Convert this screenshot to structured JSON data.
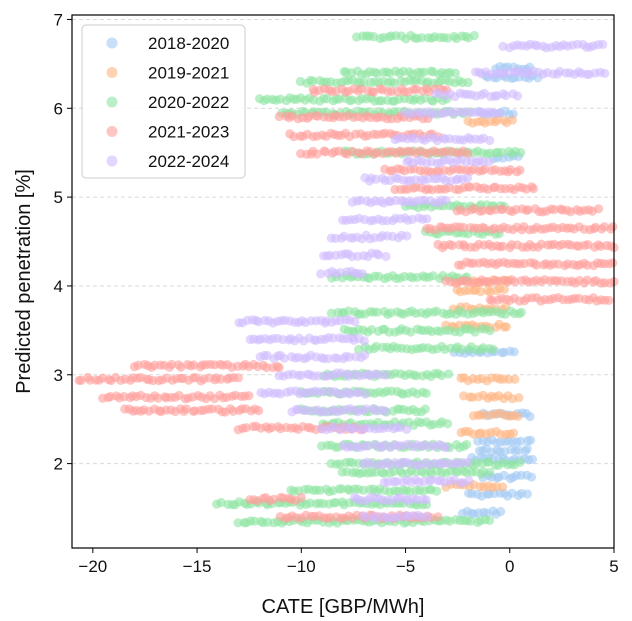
{
  "chart_data": {
    "type": "scatter",
    "xlabel": "CATE [GBP/MWh]",
    "ylabel": "Predicted penetration [%]",
    "xlim": [
      -21,
      5
    ],
    "ylim": [
      1.05,
      7.05
    ],
    "xticks": [
      -20,
      -15,
      -10,
      -5,
      0,
      5
    ],
    "yticks": [
      2,
      3,
      4,
      5,
      6,
      7
    ],
    "xtick_labels": [
      "−20",
      "−15",
      "−10",
      "−5",
      "0",
      "5"
    ],
    "ytick_labels": [
      "2",
      "3",
      "4",
      "5",
      "6",
      "7"
    ],
    "grid": "horizontal dashed",
    "legend_position": "top-left",
    "series": [
      {
        "name": "2018-2020",
        "color": "#a1c9f4",
        "bands": [
          {
            "y": 6.45,
            "x_min": -0.7,
            "x_max": 1.0
          },
          {
            "y": 6.35,
            "x_min": -1.2,
            "x_max": 1.3
          },
          {
            "y": 5.95,
            "x_min": -1.5,
            "x_max": 0.2
          },
          {
            "y": 5.45,
            "x_min": -0.8,
            "x_max": 0.4
          },
          {
            "y": 3.25,
            "x_min": -2.6,
            "x_max": 0.2
          },
          {
            "y": 2.55,
            "x_min": -1.2,
            "x_max": 1.0
          },
          {
            "y": 2.25,
            "x_min": -1.5,
            "x_max": 1.0
          },
          {
            "y": 2.15,
            "x_min": -1.5,
            "x_max": 0.9
          },
          {
            "y": 2.05,
            "x_min": -1.8,
            "x_max": 1.1
          },
          {
            "y": 1.85,
            "x_min": -1.3,
            "x_max": 1.0
          },
          {
            "y": 1.65,
            "x_min": -2.0,
            "x_max": 0.8
          },
          {
            "y": 1.45,
            "x_min": -2.3,
            "x_max": -0.4
          }
        ]
      },
      {
        "name": "2019-2021",
        "color": "#ffb482",
        "bands": [
          {
            "y": 5.85,
            "x_min": -2.0,
            "x_max": 0.1
          },
          {
            "y": 4.05,
            "x_min": -2.6,
            "x_max": -0.1
          },
          {
            "y": 3.95,
            "x_min": -2.6,
            "x_max": -0.3
          },
          {
            "y": 3.75,
            "x_min": -2.7,
            "x_max": -0.2
          },
          {
            "y": 3.55,
            "x_min": -3.0,
            "x_max": -0.1
          },
          {
            "y": 2.95,
            "x_min": -2.4,
            "x_max": 0.2
          },
          {
            "y": 2.75,
            "x_min": -2.2,
            "x_max": 0.4
          },
          {
            "y": 2.55,
            "x_min": -1.8,
            "x_max": 0.4
          },
          {
            "y": 2.35,
            "x_min": -2.4,
            "x_max": 0.2
          },
          {
            "y": 1.75,
            "x_min": -3.0,
            "x_max": -0.4
          }
        ]
      },
      {
        "name": "2020-2022",
        "color": "#8de5a1",
        "bands": [
          {
            "y": 6.8,
            "x_min": -7.3,
            "x_max": -1.7
          },
          {
            "y": 6.4,
            "x_min": -8.0,
            "x_max": -2.6
          },
          {
            "y": 6.3,
            "x_min": -10.0,
            "x_max": -2.0
          },
          {
            "y": 6.1,
            "x_min": -12.0,
            "x_max": -3.0
          },
          {
            "y": 5.95,
            "x_min": -11.0,
            "x_max": -2.0
          },
          {
            "y": 5.5,
            "x_min": -8.0,
            "x_max": 0.5
          },
          {
            "y": 4.9,
            "x_min": -5.0,
            "x_max": -0.3
          },
          {
            "y": 4.6,
            "x_min": -4.0,
            "x_max": -0.5
          },
          {
            "y": 4.1,
            "x_min": -8.5,
            "x_max": -2.0
          },
          {
            "y": 3.7,
            "x_min": -8.5,
            "x_max": 0.6
          },
          {
            "y": 3.5,
            "x_min": -8.0,
            "x_max": -1.0
          },
          {
            "y": 3.3,
            "x_min": -7.2,
            "x_max": -0.8
          },
          {
            "y": 3.0,
            "x_min": -9.0,
            "x_max": -3.0
          },
          {
            "y": 2.8,
            "x_min": -10.0,
            "x_max": -4.0
          },
          {
            "y": 2.6,
            "x_min": -10.0,
            "x_max": -4.0
          },
          {
            "y": 2.45,
            "x_min": -9.0,
            "x_max": -3.0
          },
          {
            "y": 2.2,
            "x_min": -9.0,
            "x_max": -2.0
          },
          {
            "y": 2.0,
            "x_min": -8.5,
            "x_max": 0.5
          },
          {
            "y": 1.9,
            "x_min": -8.0,
            "x_max": -1.0
          },
          {
            "y": 1.7,
            "x_min": -10.5,
            "x_max": -3.5
          },
          {
            "y": 1.55,
            "x_min": -14.0,
            "x_max": -4.0
          },
          {
            "y": 1.35,
            "x_min": -13.0,
            "x_max": -1.0
          }
        ]
      },
      {
        "name": "2021-2023",
        "color": "#ff9f9b",
        "bands": [
          {
            "y": 6.2,
            "x_min": -9.5,
            "x_max": -3.0
          },
          {
            "y": 5.9,
            "x_min": -11.0,
            "x_max": -4.0
          },
          {
            "y": 5.7,
            "x_min": -10.5,
            "x_max": -3.5
          },
          {
            "y": 5.5,
            "x_min": -10.0,
            "x_max": -2.0
          },
          {
            "y": 5.3,
            "x_min": -6.0,
            "x_max": 0.5
          },
          {
            "y": 5.1,
            "x_min": -5.5,
            "x_max": 1.2
          },
          {
            "y": 4.85,
            "x_min": -2.5,
            "x_max": 4.2
          },
          {
            "y": 4.65,
            "x_min": -4.0,
            "x_max": 5.0
          },
          {
            "y": 4.45,
            "x_min": -3.5,
            "x_max": 5.0
          },
          {
            "y": 4.25,
            "x_min": -2.5,
            "x_max": 5.0
          },
          {
            "y": 4.05,
            "x_min": -3.0,
            "x_max": 5.0
          },
          {
            "y": 3.85,
            "x_min": -1.0,
            "x_max": 4.8
          },
          {
            "y": 3.1,
            "x_min": -18.0,
            "x_max": -11.0
          },
          {
            "y": 2.95,
            "x_min": -20.7,
            "x_max": -13.0
          },
          {
            "y": 2.75,
            "x_min": -19.5,
            "x_max": -12.5
          },
          {
            "y": 2.6,
            "x_min": -18.5,
            "x_max": -12.0
          },
          {
            "y": 2.4,
            "x_min": -13.0,
            "x_max": -7.0
          },
          {
            "y": 1.6,
            "x_min": -12.5,
            "x_max": -10.0
          },
          {
            "y": 1.4,
            "x_min": -11.0,
            "x_max": -3.5
          }
        ]
      },
      {
        "name": "2022-2024",
        "color": "#d0bbff",
        "bands": [
          {
            "y": 6.7,
            "x_min": -0.3,
            "x_max": 4.5
          },
          {
            "y": 6.4,
            "x_min": -1.7,
            "x_max": 4.5
          },
          {
            "y": 6.15,
            "x_min": -3.5,
            "x_max": 0.3
          },
          {
            "y": 5.95,
            "x_min": -5.0,
            "x_max": -0.5
          },
          {
            "y": 5.65,
            "x_min": -5.5,
            "x_max": -1.0
          },
          {
            "y": 5.4,
            "x_min": -5.0,
            "x_max": -1.0
          },
          {
            "y": 5.2,
            "x_min": -7.0,
            "x_max": -2.0
          },
          {
            "y": 4.95,
            "x_min": -7.5,
            "x_max": -3.0
          },
          {
            "y": 4.75,
            "x_min": -8.0,
            "x_max": -4.0
          },
          {
            "y": 4.55,
            "x_min": -8.5,
            "x_max": -5.0
          },
          {
            "y": 4.35,
            "x_min": -9.0,
            "x_max": -6.0
          },
          {
            "y": 4.15,
            "x_min": -9.0,
            "x_max": -7.0
          },
          {
            "y": 3.6,
            "x_min": -13.0,
            "x_max": -7.5
          },
          {
            "y": 3.4,
            "x_min": -12.5,
            "x_max": -7.0
          },
          {
            "y": 3.2,
            "x_min": -12.0,
            "x_max": -7.0
          },
          {
            "y": 3.0,
            "x_min": -11.0,
            "x_max": -6.0
          },
          {
            "y": 2.8,
            "x_min": -12.0,
            "x_max": -7.0
          },
          {
            "y": 2.6,
            "x_min": -10.5,
            "x_max": -6.0
          },
          {
            "y": 2.4,
            "x_min": -9.0,
            "x_max": -5.0
          },
          {
            "y": 2.2,
            "x_min": -8.0,
            "x_max": -3.0
          },
          {
            "y": 2.0,
            "x_min": -7.0,
            "x_max": -2.0
          },
          {
            "y": 1.8,
            "x_min": -6.0,
            "x_max": -2.0
          },
          {
            "y": 1.6,
            "x_min": -7.5,
            "x_max": -4.0
          },
          {
            "y": 1.4,
            "x_min": -7.0,
            "x_max": -4.0
          }
        ]
      }
    ]
  }
}
